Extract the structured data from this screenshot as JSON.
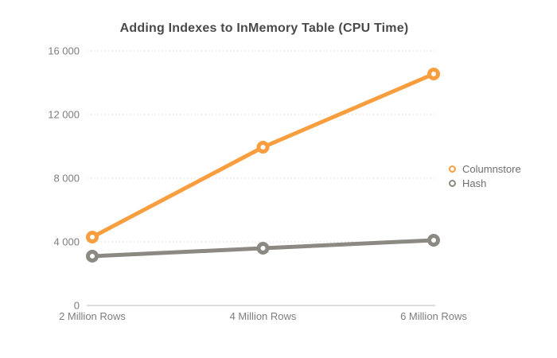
{
  "chart_data": {
    "type": "line",
    "title": "Adding Indexes to InMemory Table (CPU Time)",
    "categories": [
      "2 Million Rows",
      "4 Million Rows",
      "6 Million Rows"
    ],
    "series": [
      {
        "name": "Columnstore",
        "color": "#F99E3F",
        "values": [
          4300,
          9950,
          14550
        ]
      },
      {
        "name": "Hash",
        "color": "#8C8882",
        "values": [
          3100,
          3600,
          4100
        ]
      }
    ],
    "xlabel": "",
    "ylabel": "",
    "ylim": [
      0,
      16000
    ],
    "yticks": [
      {
        "value": 0,
        "label": "0"
      },
      {
        "value": 4000,
        "label": "4 000"
      },
      {
        "value": 8000,
        "label": "8 000"
      },
      {
        "value": 12000,
        "label": "12 000"
      },
      {
        "value": 16000,
        "label": "16 000"
      }
    ],
    "grid": "horizontal-dotted",
    "legend_position": "right",
    "marker_style": "open-ring",
    "colors": {
      "title_text": "#4a4a4a",
      "tick_text": "#7d7d7d",
      "gridline": "#d8d8d8",
      "baseline": "#c6c6c6",
      "background": "#ffffff"
    }
  }
}
